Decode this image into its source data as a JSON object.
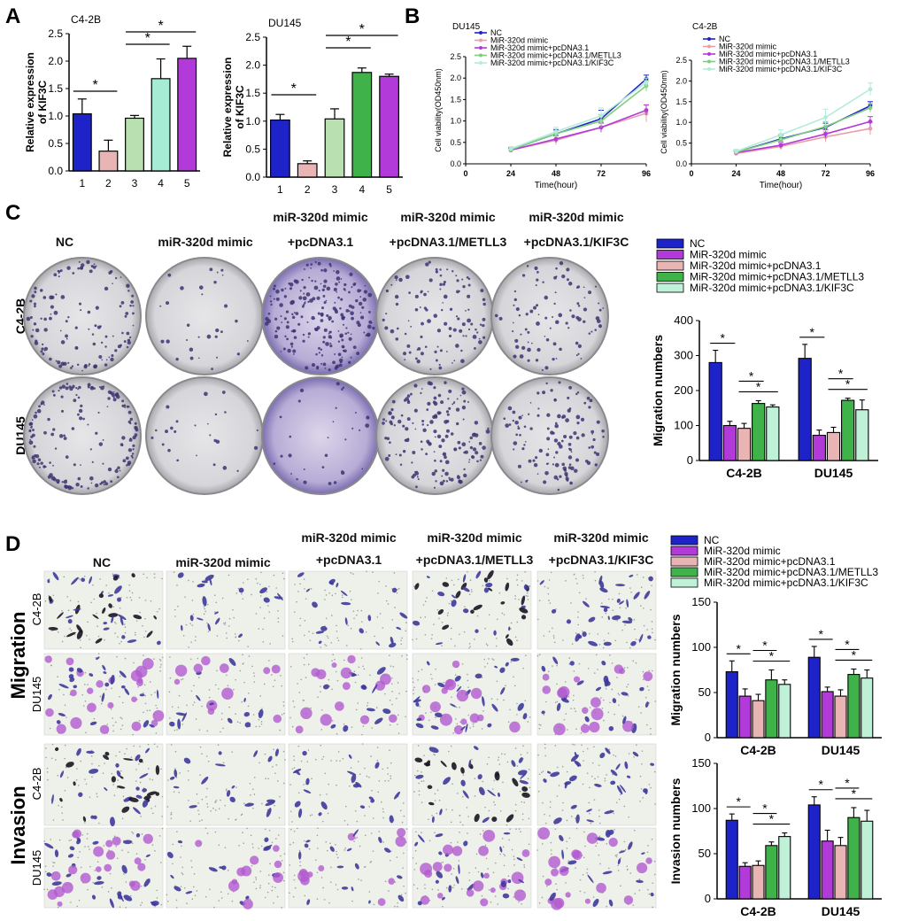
{
  "panels": {
    "A": "A",
    "B": "B",
    "C": "C",
    "D": "D"
  },
  "colors": {
    "nc": "#1d23c9",
    "mimic_pink": "#e8b4b4",
    "mimic_magenta": "#b13ad9",
    "pcdna_light_green": "#b9e0b0",
    "pcdna_pink": "#dcaaaa",
    "metll3": "#3fb24a",
    "metll3_light": "#a6ecd4",
    "kif3c": "#bff0d8",
    "kif3c_green": "#8fd58a",
    "crystal": "#4b3f9b"
  },
  "group_labels": {
    "nc": "NC",
    "mimic": "miR-320d mimic",
    "pc_top": "miR-320d mimic",
    "pc_bottom": "+pcDNA3.1",
    "met_top": "miR-320d mimic",
    "met_bottom": "+pcDNA3.1/METLL3",
    "kif_top": "miR-320d mimic",
    "kif_bottom": "+pcDNA3.1/KIF3C"
  },
  "row_labels": {
    "c42b": "C4-2B",
    "du145": "DU145",
    "migration": "Migration",
    "invasion": "Invasion"
  },
  "chart_data": [
    {
      "id": "A_c42b",
      "type": "bar",
      "title": "C4-2B",
      "ylabel": "Relative expression of KIF3C",
      "ylim": [
        0,
        2.5
      ],
      "yticks": [
        0,
        0.5,
        1.0,
        1.5,
        2.0,
        2.5
      ],
      "categories": [
        "1",
        "2",
        "3",
        "4",
        "5"
      ],
      "values": [
        1.04,
        0.36,
        0.96,
        1.68,
        2.05
      ],
      "errors": [
        0.27,
        0.2,
        0.05,
        0.36,
        0.22
      ],
      "colors": [
        "#1d23c9",
        "#e8b4b4",
        "#b9e0b0",
        "#a6ecd4",
        "#b13ad9"
      ],
      "significance": [
        [
          "1",
          "2",
          "*"
        ],
        [
          "3",
          "4",
          "*"
        ],
        [
          "3",
          "5",
          "*"
        ]
      ]
    },
    {
      "id": "A_du145",
      "type": "bar",
      "title": "DU145",
      "ylabel": "Relative expression of KIF3C",
      "ylim": [
        0,
        2.5
      ],
      "yticks": [
        0,
        0.5,
        1.0,
        1.5,
        2.0,
        2.5
      ],
      "categories": [
        "1",
        "2",
        "3",
        "4",
        "5"
      ],
      "values": [
        1.02,
        0.24,
        1.04,
        1.87,
        1.8
      ],
      "errors": [
        0.1,
        0.05,
        0.18,
        0.08,
        0.04
      ],
      "colors": [
        "#1d23c9",
        "#e8b4b4",
        "#b9e0b0",
        "#3fb24a",
        "#b13ad9"
      ],
      "significance": [
        [
          "1",
          "2",
          "*"
        ],
        [
          "3",
          "4",
          "*"
        ],
        [
          "3",
          "5",
          "*"
        ]
      ]
    },
    {
      "id": "B_du145",
      "type": "line",
      "title": "DU145",
      "xlabel": "Time(hour)",
      "ylabel": "Cell viability(OD450nm)",
      "xlim": [
        0,
        96
      ],
      "ylim": [
        0,
        2.5
      ],
      "xticks": [
        0,
        24,
        48,
        72,
        96
      ],
      "yticks": [
        0,
        0.5,
        1.0,
        1.5,
        2.0,
        2.5
      ],
      "x": [
        24,
        48,
        72,
        96
      ],
      "series": [
        {
          "name": "NC",
          "color": "#1d23c9",
          "values": [
            0.33,
            0.7,
            1.05,
            1.98
          ],
          "err": [
            0.05,
            0.1,
            0.2,
            0.09
          ]
        },
        {
          "name": "MiR-320d mimic",
          "color": "#e8a0a8",
          "values": [
            0.32,
            0.55,
            0.85,
            1.18
          ],
          "err": [
            0.04,
            0.1,
            0.12,
            0.2
          ]
        },
        {
          "name": "MiR-320d mimic+pcDNA3.1",
          "color": "#b13ad9",
          "values": [
            0.32,
            0.58,
            0.85,
            1.25
          ],
          "err": [
            0.04,
            0.08,
            0.1,
            0.12
          ]
        },
        {
          "name": "MiR-320d mimic+pcDNA3.1/METLL3",
          "color": "#7fcf7a",
          "values": [
            0.33,
            0.7,
            1.0,
            1.82
          ],
          "err": [
            0.05,
            0.08,
            0.15,
            0.12
          ]
        },
        {
          "name": "MiR-320d mimic+pcDNA3.1/KIF3C",
          "color": "#b2ecd8",
          "values": [
            0.35,
            0.75,
            1.12,
            1.9
          ],
          "err": [
            0.05,
            0.1,
            0.18,
            0.1
          ]
        }
      ]
    },
    {
      "id": "B_c42b",
      "type": "line",
      "title": "C4-2B",
      "xlabel": "Time(hour)",
      "ylabel": "Cell viability(OD450nm)",
      "xlim": [
        0,
        96
      ],
      "ylim": [
        0,
        2.5
      ],
      "xticks": [
        0,
        24,
        48,
        72,
        96
      ],
      "yticks": [
        0,
        0.5,
        1.0,
        1.5,
        2.0,
        2.5
      ],
      "x": [
        24,
        48,
        72,
        96
      ],
      "series": [
        {
          "name": "NC",
          "color": "#1d23c9",
          "values": [
            0.28,
            0.6,
            0.88,
            1.4
          ],
          "err": [
            0.04,
            0.1,
            0.1,
            0.1
          ]
        },
        {
          "name": "MiR-320d mimic",
          "color": "#e8a0a8",
          "values": [
            0.25,
            0.42,
            0.65,
            0.85
          ],
          "err": [
            0.04,
            0.08,
            0.12,
            0.15
          ]
        },
        {
          "name": "MiR-320d mimic+pcDNA3.1",
          "color": "#b13ad9",
          "values": [
            0.27,
            0.45,
            0.72,
            1.02
          ],
          "err": [
            0.04,
            0.08,
            0.1,
            0.12
          ]
        },
        {
          "name": "MiR-320d mimic+pcDNA3.1/METLL3",
          "color": "#7fcf7a",
          "values": [
            0.28,
            0.58,
            0.9,
            1.35
          ],
          "err": [
            0.04,
            0.08,
            0.12,
            0.1
          ]
        },
        {
          "name": "MiR-320d mimic+pcDNA3.1/KIF3C",
          "color": "#b2ecd8",
          "values": [
            0.3,
            0.7,
            1.12,
            1.8
          ],
          "err": [
            0.05,
            0.12,
            0.2,
            0.15
          ]
        }
      ]
    },
    {
      "id": "C_bar",
      "type": "bar",
      "ylabel": "Migration numbers",
      "ylim": [
        0,
        400
      ],
      "yticks": [
        0,
        100,
        200,
        300,
        400
      ],
      "categories": [
        "C4-2B",
        "DU145"
      ],
      "series": [
        {
          "name": "NC",
          "color": "#1d23c9",
          "values": [
            280,
            292
          ],
          "err": [
            35,
            40
          ]
        },
        {
          "name": "MiR-320d mimic",
          "color": "#b13ad9",
          "values": [
            100,
            72
          ],
          "err": [
            12,
            15
          ]
        },
        {
          "name": "MiR-320d mimic+pcDNA3.1",
          "color": "#e8b4b4",
          "values": [
            92,
            80
          ],
          "err": [
            14,
            15
          ]
        },
        {
          "name": "MiR-320d mimic+pcDNA3.1/METLL3",
          "color": "#3fb24a",
          "values": [
            163,
            172
          ],
          "err": [
            8,
            6
          ]
        },
        {
          "name": "MiR-320d mimic+pcDNA3.1/KIF3C",
          "color": "#bff0d8",
          "values": [
            153,
            145
          ],
          "err": [
            6,
            28
          ]
        }
      ],
      "significance": [
        [
          0,
          1,
          "*"
        ],
        [
          2,
          3,
          "*"
        ],
        [
          2,
          4,
          "*"
        ]
      ]
    },
    {
      "id": "D_migration",
      "type": "bar",
      "ylabel": "Migration numbers",
      "ylim": [
        0,
        150
      ],
      "yticks": [
        0,
        50,
        100,
        150
      ],
      "categories": [
        "C4-2B",
        "DU145"
      ],
      "series": [
        {
          "name": "NC",
          "color": "#1d23c9",
          "values": [
            73,
            89
          ],
          "err": [
            12,
            12
          ]
        },
        {
          "name": "MiR-320d mimic",
          "color": "#b13ad9",
          "values": [
            46,
            51
          ],
          "err": [
            8,
            5
          ]
        },
        {
          "name": "MiR-320d mimic+pcDNA3.1",
          "color": "#e8b4b4",
          "values": [
            41,
            46
          ],
          "err": [
            7,
            7
          ]
        },
        {
          "name": "MiR-320d mimic+pcDNA3.1/METLL3",
          "color": "#3fb24a",
          "values": [
            64,
            70
          ],
          "err": [
            11,
            6
          ]
        },
        {
          "name": "MiR-320d mimic+pcDNA3.1/KIF3C",
          "color": "#bff0d8",
          "values": [
            59,
            66
          ],
          "err": [
            5,
            9
          ]
        }
      ],
      "significance": [
        [
          0,
          1,
          "*"
        ],
        [
          2,
          3,
          "*"
        ],
        [
          2,
          4,
          "*"
        ]
      ]
    },
    {
      "id": "D_invasion",
      "type": "bar",
      "ylabel": "Invasion numbers",
      "ylim": [
        0,
        150
      ],
      "yticks": [
        0,
        50,
        100,
        150
      ],
      "categories": [
        "C4-2B",
        "DU145"
      ],
      "series": [
        {
          "name": "NC",
          "color": "#1d23c9",
          "values": [
            87,
            104
          ],
          "err": [
            7,
            9
          ]
        },
        {
          "name": "MiR-320d mimic",
          "color": "#b13ad9",
          "values": [
            36,
            64
          ],
          "err": [
            4,
            12
          ]
        },
        {
          "name": "MiR-320d mimic+pcDNA3.1",
          "color": "#e8b4b4",
          "values": [
            37,
            59
          ],
          "err": [
            5,
            9
          ]
        },
        {
          "name": "MiR-320d mimic+pcDNA3.1/METLL3",
          "color": "#3fb24a",
          "values": [
            59,
            90
          ],
          "err": [
            4,
            11
          ]
        },
        {
          "name": "MiR-320d mimic+pcDNA3.1/KIF3C",
          "color": "#bff0d8",
          "values": [
            69,
            86
          ],
          "err": [
            4,
            12
          ]
        }
      ],
      "significance": [
        [
          0,
          1,
          "*"
        ],
        [
          2,
          3,
          "*"
        ],
        [
          2,
          4,
          "*"
        ]
      ]
    }
  ]
}
